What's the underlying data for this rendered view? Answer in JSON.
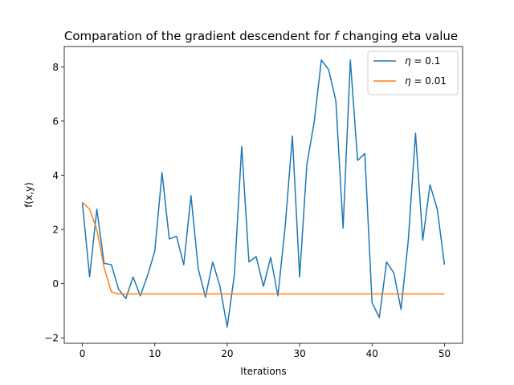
{
  "chart_data": {
    "type": "line",
    "title": "Comparation of the gradient descendent for",
    "title_symbol": "f",
    "title_suffix": "changing eta value",
    "xlabel": "Iterations",
    "ylabel": "f(x,y)",
    "xlim": [
      -2.5,
      52.5
    ],
    "ylim": [
      -2.2,
      8.75
    ],
    "xticks": [
      0,
      10,
      20,
      30,
      40,
      50
    ],
    "yticks": [
      -2,
      0,
      2,
      4,
      6,
      8
    ],
    "grid": false,
    "legend_position": "upper right",
    "series": [
      {
        "name": "η = 0.1",
        "legend_symbol": "η",
        "legend_value": " = 0.1",
        "color": "#1f77b4",
        "x": [
          0,
          1,
          2,
          3,
          4,
          5,
          6,
          7,
          8,
          9,
          10,
          11,
          12,
          13,
          14,
          15,
          16,
          17,
          18,
          19,
          20,
          21,
          22,
          23,
          24,
          25,
          26,
          27,
          28,
          29,
          30,
          31,
          32,
          33,
          34,
          35,
          36,
          37,
          38,
          39,
          40,
          41,
          42,
          43,
          44,
          45,
          46,
          47,
          48,
          49,
          50
        ],
        "y": [
          3.0,
          0.25,
          2.75,
          0.75,
          0.7,
          -0.2,
          -0.55,
          0.25,
          -0.45,
          0.3,
          1.2,
          4.1,
          1.65,
          1.75,
          0.7,
          3.25,
          0.55,
          -0.5,
          0.8,
          -0.1,
          -1.6,
          0.35,
          5.07,
          0.8,
          1.0,
          -0.1,
          0.97,
          -0.45,
          2.1,
          5.45,
          0.25,
          4.4,
          5.95,
          8.25,
          7.9,
          6.75,
          2.05,
          8.25,
          4.55,
          4.8,
          -0.7,
          -1.25,
          0.8,
          0.4,
          -0.95,
          1.6,
          5.55,
          1.6,
          3.65,
          2.75,
          0.7
        ]
      },
      {
        "name": "η = 0.01",
        "legend_symbol": "η",
        "legend_value": " = 0.01",
        "color": "#ff7f0e",
        "x": [
          0,
          1,
          2,
          3,
          4,
          5,
          6,
          7,
          8,
          9,
          10,
          11,
          12,
          13,
          14,
          15,
          16,
          17,
          18,
          19,
          20,
          21,
          22,
          23,
          24,
          25,
          26,
          27,
          28,
          29,
          30,
          31,
          32,
          33,
          34,
          35,
          36,
          37,
          38,
          39,
          40,
          41,
          42,
          43,
          44,
          45,
          46,
          47,
          48,
          49,
          50
        ],
        "y": [
          3.0,
          2.75,
          2.0,
          0.6,
          -0.3,
          -0.38,
          -0.38,
          -0.38,
          -0.38,
          -0.38,
          -0.38,
          -0.38,
          -0.38,
          -0.38,
          -0.38,
          -0.38,
          -0.38,
          -0.38,
          -0.38,
          -0.38,
          -0.38,
          -0.38,
          -0.38,
          -0.38,
          -0.38,
          -0.38,
          -0.38,
          -0.38,
          -0.38,
          -0.38,
          -0.38,
          -0.38,
          -0.38,
          -0.38,
          -0.38,
          -0.38,
          -0.38,
          -0.38,
          -0.38,
          -0.38,
          -0.38,
          -0.38,
          -0.38,
          -0.38,
          -0.38,
          -0.38,
          -0.38,
          -0.38,
          -0.38,
          -0.38,
          -0.38
        ]
      }
    ]
  }
}
